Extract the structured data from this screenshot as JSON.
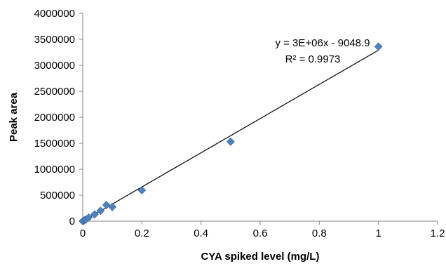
{
  "chart_data": {
    "type": "scatter",
    "xlabel": "CYA spiked level (mg/L)",
    "ylabel": "Peak area",
    "xlim": [
      0,
      1.2
    ],
    "ylim": [
      0,
      4000000
    ],
    "x_ticks": [
      0,
      0.2,
      0.4,
      0.6,
      0.8,
      1,
      1.2
    ],
    "x_tick_labels": [
      "0",
      "0.2",
      "0.4",
      "0.6",
      "0.8",
      "1",
      "1.2"
    ],
    "y_ticks": [
      0,
      500000,
      1000000,
      1500000,
      2000000,
      2500000,
      3000000,
      3500000,
      4000000
    ],
    "y_tick_labels": [
      "0",
      "500000",
      "1000000",
      "1500000",
      "2000000",
      "2500000",
      "3000000",
      "3500000",
      "4000000"
    ],
    "grid": false,
    "marker": "diamond",
    "series": [
      {
        "color": "#4f81bd",
        "points": [
          {
            "x": 0,
            "y": 0
          },
          {
            "x": 0.005,
            "y": 15000
          },
          {
            "x": 0.01,
            "y": 30000
          },
          {
            "x": 0.02,
            "y": 70000
          },
          {
            "x": 0.04,
            "y": 130000
          },
          {
            "x": 0.06,
            "y": 200000
          },
          {
            "x": 0.08,
            "y": 310000
          },
          {
            "x": 0.1,
            "y": 275000
          },
          {
            "x": 0.2,
            "y": 595000
          },
          {
            "x": 0.5,
            "y": 1530000
          },
          {
            "x": 1,
            "y": 3360000
          }
        ]
      }
    ],
    "trendline": {
      "color": "#000000",
      "slope": 3300000,
      "intercept": -9048.9,
      "x_range": [
        0,
        1
      ],
      "equation": "y = 3E+06x - 9048.9",
      "r_squared": "R² = 0.9973"
    }
  }
}
